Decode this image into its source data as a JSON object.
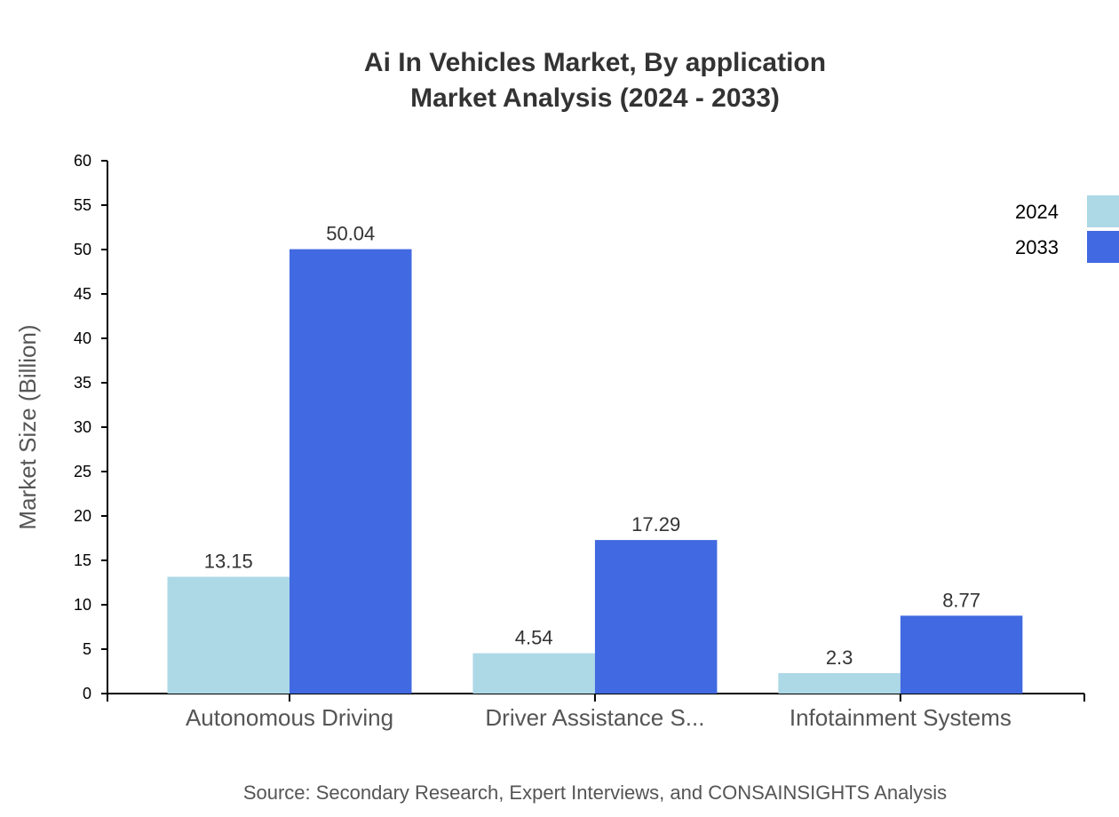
{
  "chart_data": {
    "type": "bar",
    "title": [
      "Ai In Vehicles Market, By application",
      "Market Analysis (2024 - 2033)"
    ],
    "xlabel": "",
    "ylabel": "Market Size (Billion)",
    "ylim": [
      0,
      60
    ],
    "yticks": [
      0,
      5,
      10,
      15,
      20,
      25,
      30,
      35,
      40,
      45,
      50,
      55,
      60
    ],
    "categories": [
      "Autonomous Driving",
      "Driver Assistance S...",
      "Infotainment Systems"
    ],
    "series": [
      {
        "name": "2024",
        "color": "#add8e6",
        "values": [
          13.15,
          4.54,
          2.3
        ]
      },
      {
        "name": "2033",
        "color": "#4169e1",
        "values": [
          50.04,
          17.29,
          8.77
        ]
      }
    ],
    "legend_position": "top-right",
    "grid": false,
    "source": "Source: Secondary Research, Expert Interviews, and CONSAINSIGHTS Analysis"
  }
}
